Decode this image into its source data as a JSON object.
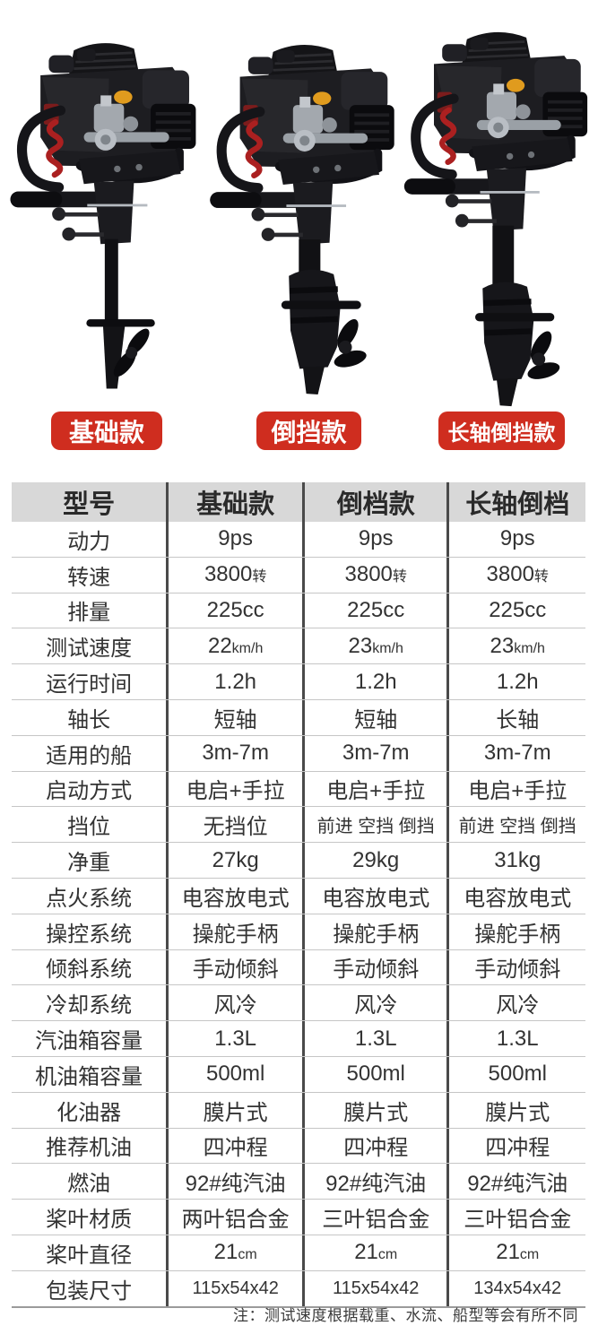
{
  "photos": {
    "badges": [
      {
        "label": "基础款"
      },
      {
        "label": "倒挡款"
      },
      {
        "label": "长轴倒挡款"
      }
    ],
    "motors": [
      {
        "name": "basic-short-shaft",
        "lower": "thin",
        "long": false
      },
      {
        "name": "reverse-gear",
        "lower": "bulky",
        "long": false
      },
      {
        "name": "long-shaft-reverse-gear",
        "lower": "bulky",
        "long": true
      }
    ]
  },
  "table": {
    "header": [
      "型号",
      "基础款",
      "倒档款",
      "长轴倒档"
    ],
    "rows": [
      {
        "label": "动力",
        "values": [
          "9ps",
          "9ps",
          "9ps"
        ]
      },
      {
        "label": "转速",
        "values": [
          {
            "v": "3800",
            "u": "转"
          },
          {
            "v": "3800",
            "u": "转"
          },
          {
            "v": "3800",
            "u": "转"
          }
        ]
      },
      {
        "label": "排量",
        "values": [
          "225cc",
          "225cc",
          "225cc"
        ]
      },
      {
        "label": "测试速度",
        "values": [
          {
            "v": "22",
            "u": "km/h"
          },
          {
            "v": "23",
            "u": "km/h"
          },
          {
            "v": "23",
            "u": "km/h"
          }
        ]
      },
      {
        "label": "运行时间",
        "values": [
          "1.2h",
          "1.2h",
          "1.2h"
        ]
      },
      {
        "label": "轴长",
        "values": [
          "短轴",
          "短轴",
          "长轴"
        ]
      },
      {
        "label": "适用的船",
        "values": [
          "3m-7m",
          "3m-7m",
          "3m-7m"
        ]
      },
      {
        "label": "启动方式",
        "values": [
          "电启+手拉",
          "电启+手拉",
          "电启+手拉"
        ]
      },
      {
        "label": "挡位",
        "values": [
          "无挡位",
          "前进 空挡 倒挡",
          "前进 空挡 倒挡"
        ]
      },
      {
        "label": "净重",
        "values": [
          "27kg",
          "29kg",
          "31kg"
        ]
      },
      {
        "label": "点火系统",
        "values": [
          "电容放电式",
          "电容放电式",
          "电容放电式"
        ]
      },
      {
        "label": "操控系统",
        "values": [
          "操舵手柄",
          "操舵手柄",
          "操舵手柄"
        ]
      },
      {
        "label": "倾斜系统",
        "values": [
          "手动倾斜",
          "手动倾斜",
          "手动倾斜"
        ]
      },
      {
        "label": "冷却系统",
        "values": [
          "风冷",
          "风冷",
          "风冷"
        ]
      },
      {
        "label": "汽油箱容量",
        "values": [
          "1.3L",
          "1.3L",
          "1.3L"
        ]
      },
      {
        "label": "机油箱容量",
        "values": [
          "500ml",
          "500ml",
          "500ml"
        ]
      },
      {
        "label": "化油器",
        "values": [
          "膜片式",
          "膜片式",
          "膜片式"
        ]
      },
      {
        "label": "推荐机油",
        "values": [
          "四冲程",
          "四冲程",
          "四冲程"
        ]
      },
      {
        "label": "燃油",
        "values": [
          "92#纯汽油",
          "92#纯汽油",
          "92#纯汽油"
        ]
      },
      {
        "label": "桨叶材质",
        "values": [
          "两叶铝合金",
          "三叶铝合金",
          "三叶铝合金"
        ]
      },
      {
        "label": "桨叶直径",
        "values": [
          {
            "v": "21",
            "u": "cm"
          },
          {
            "v": "21",
            "u": "cm"
          },
          {
            "v": "21",
            "u": "cm"
          }
        ]
      },
      {
        "label": "包装尺寸",
        "values": [
          "115x54x42",
          "115x54x42",
          "134x54x42"
        ]
      }
    ]
  },
  "footnote": "注：测试速度根据载重、水流、船型等会有所不同",
  "colors": {
    "badge_red": "#cf2d1f",
    "header_bg": "#d8d8d8",
    "column_divider": "#4a4a4a",
    "row_line": "#c6c6c6",
    "table_bottom_line": "#9b9b9b",
    "text": "#333333"
  }
}
